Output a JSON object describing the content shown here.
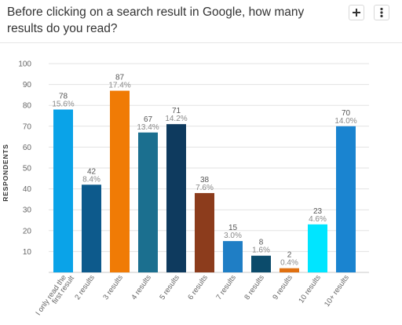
{
  "header": {
    "title": "Before clicking on a search result in Google, how many results do you read?",
    "add_icon": "plus-icon",
    "more_icon": "vertical-dots-icon"
  },
  "colors": {
    "grid": "#e3e3e3",
    "axis": "#c8c8c8",
    "count_label": "#555555",
    "pct_label": "#888888",
    "tick_label": "#666666"
  },
  "chart_data": {
    "type": "bar",
    "title": "Before clicking on a search result in Google, how many results do you read?",
    "xlabel": "",
    "ylabel": "RESPONDENTS",
    "ylim": [
      0,
      100
    ],
    "yticks": [
      10,
      20,
      30,
      40,
      50,
      60,
      70,
      80,
      90,
      100
    ],
    "grid": true,
    "legend": "none",
    "categories": [
      "I only read the first result",
      "2 results",
      "3 results",
      "4 results",
      "5 results",
      "6 results",
      "7 results",
      "8 results",
      "9 results",
      "10 results",
      "10+ results"
    ],
    "category_lines": [
      [
        "I only read the",
        "first result"
      ],
      [
        "2 results"
      ],
      [
        "3 results"
      ],
      [
        "4 results"
      ],
      [
        "5 results"
      ],
      [
        "6 results"
      ],
      [
        "7 results"
      ],
      [
        "8 results"
      ],
      [
        "9 results"
      ],
      [
        "10 results"
      ],
      [
        "10+ results"
      ]
    ],
    "values": [
      78,
      42,
      87,
      67,
      71,
      38,
      15,
      8,
      2,
      23,
      70
    ],
    "percent_labels": [
      "15.6%",
      "8.4%",
      "17.4%",
      "13.4%",
      "14.2%",
      "7.6%",
      "3.0%",
      "1.6%",
      "0.4%",
      "4.6%",
      "14.0%"
    ],
    "bar_colors": [
      "#0aa3e8",
      "#0d5a8c",
      "#f07b05",
      "#1b6f8f",
      "#0e3a5e",
      "#8c3c1c",
      "#1f7ec5",
      "#0b4b6b",
      "#e07010",
      "#00e5ff",
      "#1a84d0"
    ]
  }
}
